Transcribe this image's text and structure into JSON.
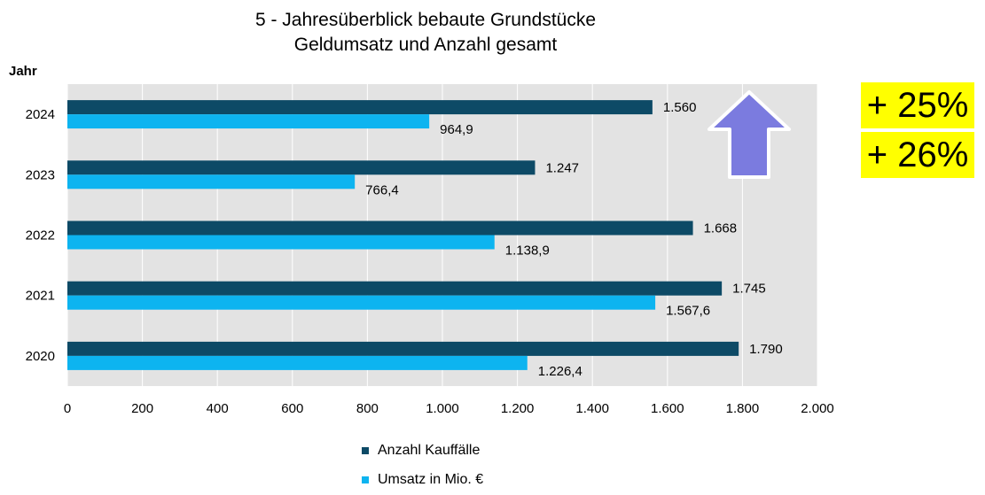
{
  "chart_data": {
    "type": "bar",
    "orientation": "horizontal",
    "title": [
      "5 - Jahresüberblick bebaute Grundstücke",
      "Geldumsatz  und  Anzahl  gesamt"
    ],
    "ylabel": "Jahr",
    "xlabel": "",
    "categories": [
      "2024",
      "2023",
      "2022",
      "2021",
      "2020"
    ],
    "series": [
      {
        "name": "Anzahl Kauffälle",
        "color": "#0d4a66",
        "values": [
          1560,
          1247,
          1668,
          1745,
          1790
        ],
        "labels": [
          "1.560",
          "1.247",
          "1.668",
          "1.745",
          "1.790"
        ]
      },
      {
        "name": "Umsatz in Mio. €",
        "color": "#0db4f0",
        "values": [
          964.9,
          766.4,
          1138.9,
          1567.6,
          1226.4
        ],
        "labels": [
          "964,9",
          "766,4",
          "1.138,9",
          "1.567,6",
          "1.226,4"
        ]
      }
    ],
    "xlim": [
      0,
      2000
    ],
    "xticks": [
      0,
      200,
      400,
      600,
      800,
      1000,
      1200,
      1400,
      1600,
      1800,
      2000
    ],
    "xtick_labels": [
      "0",
      "200",
      "400",
      "600",
      "800",
      "1.000",
      "1.200",
      "1.400",
      "1.600",
      "1.800",
      "2.000"
    ],
    "grid": true,
    "legend": "bottom"
  },
  "annotations": {
    "badges": [
      "+ 25%",
      "+ 26%"
    ],
    "arrow": "arrow-up-icon",
    "arrow_color": "#7b7bdf",
    "badge_color": "#ffff00"
  },
  "plot_background": "#e3e3e3"
}
